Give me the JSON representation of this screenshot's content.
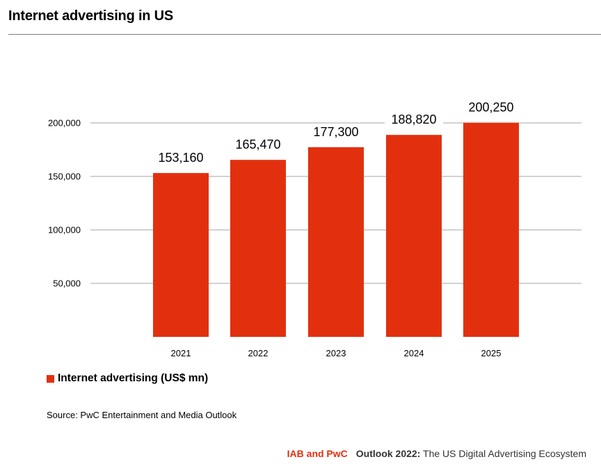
{
  "page": {
    "title": "Internet advertising in US",
    "source": "Source: PwC Entertainment and Media Outlook"
  },
  "footer": {
    "brand": "IAB and PwC",
    "publication_bold": "Outlook 2022:",
    "publication_rest": " The US Digital Advertising Ecosystem"
  },
  "colors": {
    "bar": "#e2300f",
    "brand": "#e2300f",
    "grid": "#a6a6a6"
  },
  "chart_data": {
    "type": "bar",
    "title": "",
    "xlabel": "",
    "ylabel": "",
    "categories": [
      "2021",
      "2022",
      "2023",
      "2024",
      "2025"
    ],
    "series": [
      {
        "name": "Internet advertising (US$ mn)",
        "values": [
          153160,
          165470,
          177300,
          188820,
          200250
        ],
        "labels": [
          "153,160",
          "165,470",
          "177,300",
          "188,820",
          "200,250"
        ]
      }
    ],
    "yticks": [
      50000,
      100000,
      150000,
      200000
    ],
    "ytick_labels": [
      "50,000",
      "100,000",
      "150,000",
      "200,000"
    ],
    "ylim": [
      0,
      200000
    ],
    "grid": true,
    "legend": "bottom-left"
  }
}
